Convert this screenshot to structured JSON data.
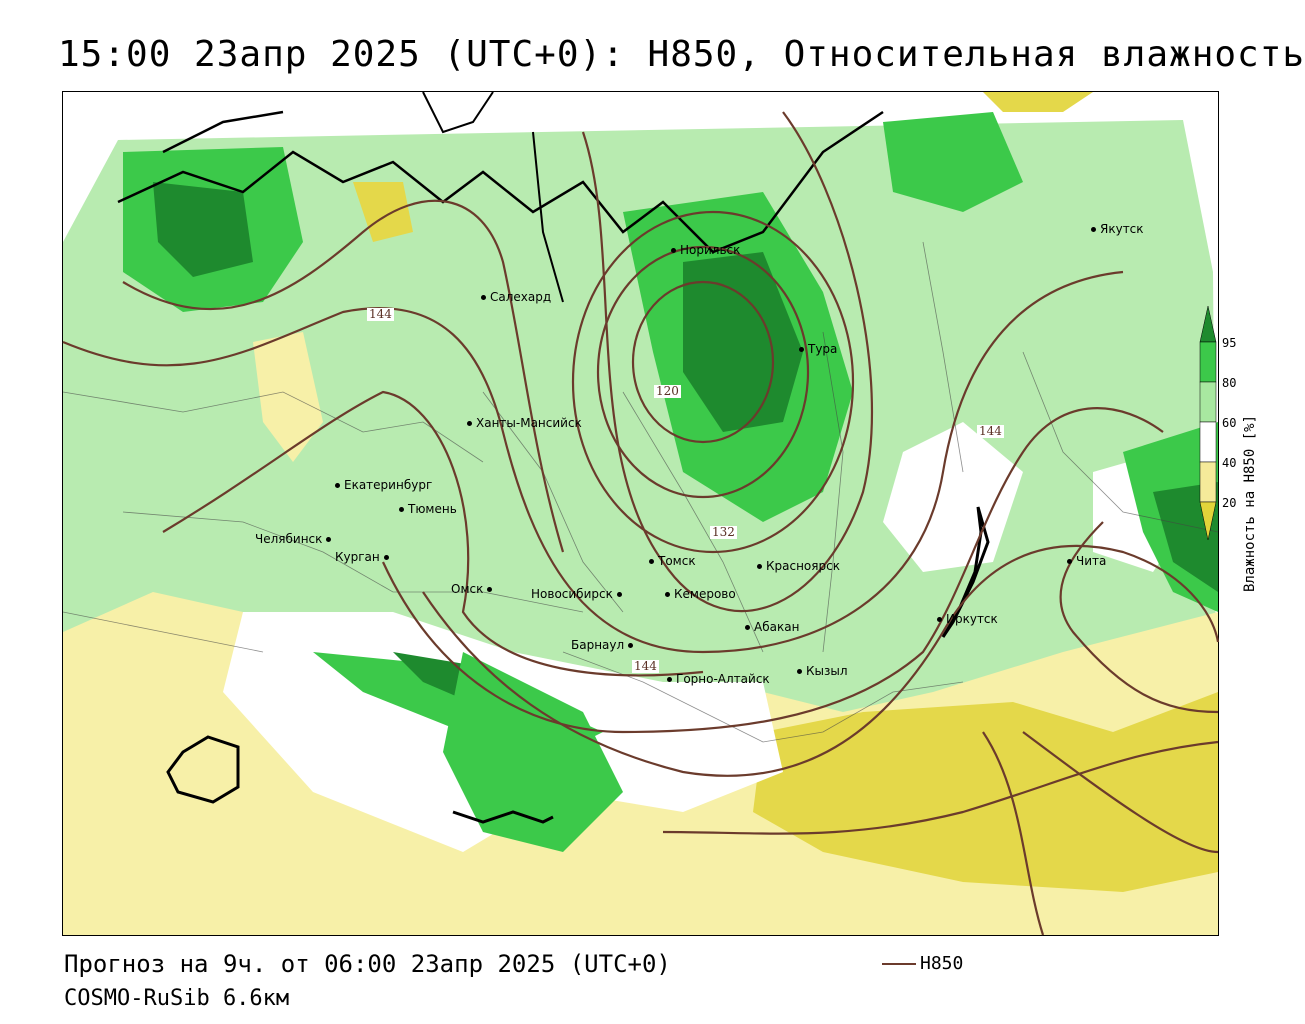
{
  "title": "15:00 23апр 2025 (UTC+0): H850, Относительная влажность",
  "footer": {
    "forecast": "Прогноз на 9ч. от 06:00 23апр 2025 (UTC+0)",
    "model": "COSMO-RuSib 6.6км"
  },
  "legend": {
    "h850_label": "H850",
    "h850_color": "#6b3b2c"
  },
  "colorbar": {
    "title": "Влажность на H850 [%]",
    "ticks": [
      "95",
      "80",
      "60",
      "40",
      "20"
    ],
    "colors": [
      "#1e8a2e",
      "#3cc94a",
      "#a8e8a0",
      "#ffffff",
      "#f5ea9a",
      "#e2d43a"
    ]
  },
  "isohypse_labels": [
    "144",
    "120",
    "132",
    "144",
    "144"
  ],
  "cities": [
    {
      "name": "Якутск"
    },
    {
      "name": "Норильск"
    },
    {
      "name": "Салехард"
    },
    {
      "name": "Тура"
    },
    {
      "name": "Ханты-Мансийск"
    },
    {
      "name": "Екатеринбург"
    },
    {
      "name": "Тюмень"
    },
    {
      "name": "Челябинск"
    },
    {
      "name": "Курган"
    },
    {
      "name": "Омск"
    },
    {
      "name": "Томск"
    },
    {
      "name": "Красноярск"
    },
    {
      "name": "Новосибирск"
    },
    {
      "name": "Кемерово"
    },
    {
      "name": "Абакан"
    },
    {
      "name": "Иркутск"
    },
    {
      "name": "Чита"
    },
    {
      "name": "Барнаул"
    },
    {
      "name": "Горно-Алтайск"
    },
    {
      "name": "Кызыл"
    }
  ]
}
